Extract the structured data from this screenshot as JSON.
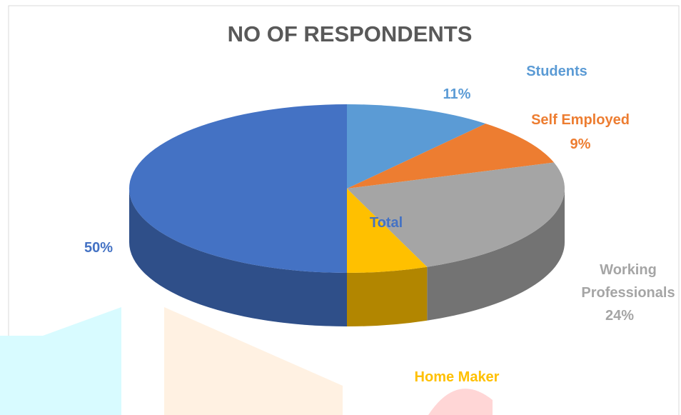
{
  "chart_data": {
    "type": "pie3d",
    "title": "NO OF RESPONDENTS",
    "categories": [
      "Students",
      "Self Employed",
      "Working Professionals",
      "Home Maker",
      "Total"
    ],
    "values": [
      11,
      9,
      24,
      6,
      50
    ],
    "value_labels": [
      "11%",
      "9%",
      "24%",
      null,
      "50%"
    ],
    "colors": [
      "#5b9bd5",
      "#ed7d31",
      "#a5a5a5",
      "#ffc000",
      "#4472c4"
    ]
  }
}
